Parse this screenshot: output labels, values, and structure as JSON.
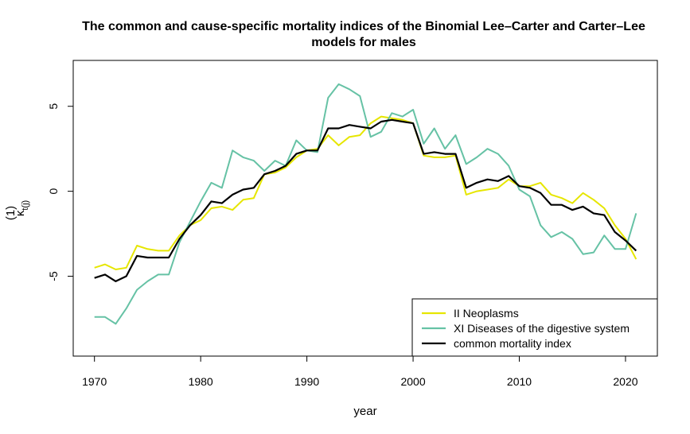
{
  "chart_data": {
    "type": "line",
    "title_line1": "The common and cause-specific mortality indices of the Binomial Lee–Carter and Carter–Lee",
    "title_line2": "models for males",
    "xlabel": "year",
    "ylabel_main": "κ",
    "ylabel_sup": "(1)",
    "ylabel_sub": "t(j)",
    "xlim": [
      1968,
      2023
    ],
    "ylim": [
      -9.7,
      7.7
    ],
    "xticks": [
      1970,
      1980,
      1990,
      2000,
      2010,
      2020
    ],
    "yticks": [
      -5,
      0,
      5
    ],
    "xtick_labels": [
      "1970",
      "1980",
      "1990",
      "2000",
      "2010",
      "2020"
    ],
    "ytick_labels": [
      "-5",
      "0",
      "5"
    ],
    "x": [
      1970,
      1971,
      1972,
      1973,
      1974,
      1975,
      1976,
      1977,
      1978,
      1979,
      1980,
      1981,
      1982,
      1983,
      1984,
      1985,
      1986,
      1987,
      1988,
      1989,
      1990,
      1991,
      1992,
      1993,
      1994,
      1995,
      1996,
      1997,
      1998,
      1999,
      2000,
      2001,
      2002,
      2003,
      2004,
      2005,
      2006,
      2007,
      2008,
      2009,
      2010,
      2011,
      2012,
      2013,
      2014,
      2015,
      2016,
      2017,
      2018,
      2019,
      2020,
      2021
    ],
    "series": [
      {
        "name": "II Neoplasms",
        "color": "#e6e600",
        "values": [
          -4.5,
          -4.3,
          -4.6,
          -4.5,
          -3.2,
          -3.4,
          -3.5,
          -3.5,
          -2.6,
          -2.0,
          -1.7,
          -1.0,
          -0.9,
          -1.1,
          -0.5,
          -0.4,
          1.0,
          1.1,
          1.4,
          2.0,
          2.4,
          2.5,
          3.3,
          2.7,
          3.2,
          3.3,
          4.0,
          4.4,
          4.3,
          4.2,
          4.0,
          2.1,
          2.0,
          2.0,
          2.1,
          -0.2,
          0.0,
          0.1,
          0.2,
          0.7,
          0.3,
          0.3,
          0.5,
          -0.2,
          -0.4,
          -0.7,
          -0.1,
          -0.5,
          -1.0,
          -2.0,
          -2.8,
          -4.0
        ]
      },
      {
        "name": "XI Diseases of the digestive system",
        "color": "#66c2a5",
        "values": [
          -7.4,
          -7.4,
          -7.8,
          -6.9,
          -5.8,
          -5.3,
          -4.9,
          -4.9,
          -3.0,
          -1.8,
          -0.6,
          0.5,
          0.2,
          2.4,
          2.0,
          1.8,
          1.2,
          1.8,
          1.5,
          3.0,
          2.4,
          2.3,
          5.5,
          6.3,
          6.0,
          5.6,
          3.2,
          3.5,
          4.6,
          4.4,
          4.8,
          2.8,
          3.7,
          2.5,
          3.3,
          1.6,
          2.0,
          2.5,
          2.2,
          1.5,
          0.1,
          -0.3,
          -2.0,
          -2.7,
          -2.4,
          -2.8,
          -3.7,
          -3.6,
          -2.6,
          -3.4,
          -3.4,
          -1.3
        ]
      },
      {
        "name": "common mortality index",
        "color": "#000000",
        "values": [
          -5.1,
          -4.9,
          -5.3,
          -5.0,
          -3.8,
          -3.9,
          -3.9,
          -3.9,
          -2.8,
          -2.0,
          -1.4,
          -0.6,
          -0.7,
          -0.2,
          0.1,
          0.2,
          1.0,
          1.2,
          1.5,
          2.2,
          2.4,
          2.4,
          3.7,
          3.7,
          3.9,
          3.8,
          3.7,
          4.1,
          4.2,
          4.1,
          4.0,
          2.2,
          2.3,
          2.2,
          2.2,
          0.2,
          0.5,
          0.7,
          0.6,
          0.9,
          0.3,
          0.2,
          -0.1,
          -0.8,
          -0.8,
          -1.1,
          -0.9,
          -1.3,
          -1.4,
          -2.4,
          -2.9,
          -3.5
        ]
      }
    ],
    "legend": {
      "placement": "bottom-right",
      "entries": [
        "II Neoplasms",
        "XI Diseases of the digestive system",
        "common mortality index"
      ]
    },
    "grid": false
  }
}
